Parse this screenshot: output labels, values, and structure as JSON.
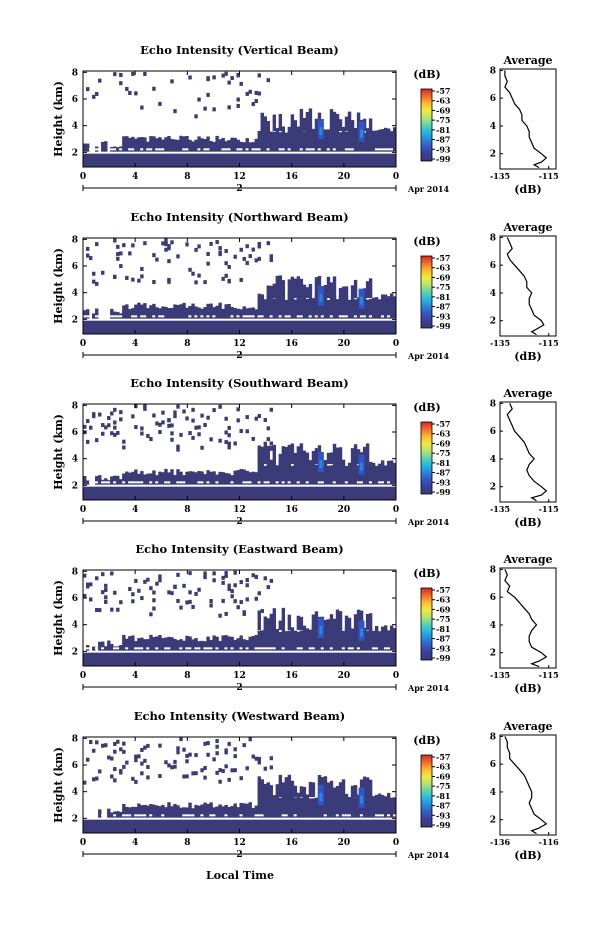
{
  "figure": {
    "bottom_label": "Local Time",
    "colorbar_unit": "(dB)",
    "colorbar_ticks": [
      "-57",
      "-63",
      "-69",
      "-75",
      "-81",
      "-87",
      "-93",
      "-99"
    ],
    "colorbar_colors": [
      "#d1272c",
      "#f36b2a",
      "#fdb930",
      "#f2ea3c",
      "#b8e36e",
      "#5fd3ac",
      "#23b7e3",
      "#2b86d8",
      "#3557c4",
      "#3b3f9a",
      "#3a3a78"
    ],
    "fill_color": "#3a3b78"
  },
  "chart_data": [
    {
      "type": "heatmap",
      "title": "Echo Intensity (Vertical Beam)",
      "ylabel": "Height (km)",
      "x_ticks": [
        "0",
        "4",
        "8",
        "12",
        "16",
        "20",
        "0"
      ],
      "y_ticks": [
        "2",
        "4",
        "6",
        "8"
      ],
      "xlim": [
        0,
        24
      ],
      "ylim": [
        0.9,
        8.1
      ],
      "date_marker": "2",
      "date_suffix": "Apr 2014",
      "profile": {
        "title": "Average",
        "xlabel": "(dB)",
        "x_ticks": [
          "-135",
          "-115"
        ],
        "xlim": [
          -135,
          -112
        ],
        "points": [
          [
            -133,
            8.0
          ],
          [
            -133,
            7.6
          ],
          [
            -132,
            7.2
          ],
          [
            -133,
            6.8
          ],
          [
            -131,
            6.4
          ],
          [
            -130,
            6.0
          ],
          [
            -129,
            5.6
          ],
          [
            -127,
            5.2
          ],
          [
            -126,
            4.8
          ],
          [
            -126,
            4.4
          ],
          [
            -124,
            4.0
          ],
          [
            -123,
            3.6
          ],
          [
            -123,
            3.2
          ],
          [
            -122,
            2.8
          ],
          [
            -121,
            2.4
          ],
          [
            -118,
            2.0
          ],
          [
            -116,
            1.7
          ],
          [
            -118,
            1.4
          ],
          [
            -121,
            1.2
          ],
          [
            -119,
            1.0
          ]
        ]
      }
    },
    {
      "type": "heatmap",
      "title": "Echo Intensity (Northward Beam)",
      "ylabel": "Height (km)",
      "x_ticks": [
        "0",
        "4",
        "8",
        "12",
        "16",
        "20",
        "0"
      ],
      "y_ticks": [
        "2",
        "4",
        "6",
        "8"
      ],
      "xlim": [
        0,
        24
      ],
      "ylim": [
        0.9,
        8.1
      ],
      "date_marker": "2",
      "date_suffix": "Apr 2014",
      "profile": {
        "title": "Average",
        "xlabel": "(dB)",
        "x_ticks": [
          "-135",
          "-115"
        ],
        "xlim": [
          -135,
          -112
        ],
        "points": [
          [
            -132,
            8.0
          ],
          [
            -131,
            7.6
          ],
          [
            -130,
            7.2
          ],
          [
            -132,
            6.8
          ],
          [
            -131,
            6.4
          ],
          [
            -129,
            6.0
          ],
          [
            -127,
            5.6
          ],
          [
            -125,
            5.2
          ],
          [
            -124,
            4.8
          ],
          [
            -124,
            4.4
          ],
          [
            -122,
            4.0
          ],
          [
            -123,
            3.6
          ],
          [
            -123,
            3.2
          ],
          [
            -122,
            2.8
          ],
          [
            -121,
            2.4
          ],
          [
            -118,
            2.0
          ],
          [
            -117,
            1.7
          ],
          [
            -120,
            1.4
          ],
          [
            -122,
            1.2
          ],
          [
            -120,
            1.0
          ]
        ]
      }
    },
    {
      "type": "heatmap",
      "title": "Echo Intensity (Southward Beam)",
      "ylabel": "Height (km)",
      "x_ticks": [
        "0",
        "4",
        "8",
        "12",
        "16",
        "20",
        "0"
      ],
      "y_ticks": [
        "2",
        "4",
        "6",
        "8"
      ],
      "xlim": [
        0,
        24
      ],
      "ylim": [
        0.9,
        8.1
      ],
      "date_marker": "2",
      "date_suffix": "Apr 2014",
      "profile": {
        "title": "Average",
        "xlabel": "(dB)",
        "x_ticks": [
          "-135",
          "-115"
        ],
        "xlim": [
          -135,
          -112
        ],
        "points": [
          [
            -131,
            8.0
          ],
          [
            -130,
            7.6
          ],
          [
            -132,
            7.2
          ],
          [
            -131,
            6.8
          ],
          [
            -130,
            6.4
          ],
          [
            -129,
            6.0
          ],
          [
            -127,
            5.6
          ],
          [
            -125,
            5.2
          ],
          [
            -124,
            4.8
          ],
          [
            -123,
            4.4
          ],
          [
            -121,
            4.0
          ],
          [
            -123,
            3.6
          ],
          [
            -124,
            3.2
          ],
          [
            -123,
            2.8
          ],
          [
            -121,
            2.4
          ],
          [
            -118,
            2.0
          ],
          [
            -116,
            1.7
          ],
          [
            -118,
            1.4
          ],
          [
            -122,
            1.2
          ],
          [
            -120,
            1.0
          ]
        ]
      }
    },
    {
      "type": "heatmap",
      "title": "Echo Intensity (Eastward Beam)",
      "ylabel": "Height (km)",
      "x_ticks": [
        "0",
        "4",
        "8",
        "12",
        "16",
        "20",
        "0"
      ],
      "y_ticks": [
        "2",
        "4",
        "6",
        "8"
      ],
      "xlim": [
        0,
        24
      ],
      "ylim": [
        0.9,
        8.1
      ],
      "date_marker": "2",
      "date_suffix": "Apr 2014",
      "profile": {
        "title": "Average",
        "xlabel": "(dB)",
        "x_ticks": [
          "-135",
          "-115"
        ],
        "xlim": [
          -135,
          -112
        ],
        "points": [
          [
            -133,
            8.0
          ],
          [
            -132,
            7.6
          ],
          [
            -133,
            7.2
          ],
          [
            -131,
            6.8
          ],
          [
            -132,
            6.4
          ],
          [
            -129,
            6.0
          ],
          [
            -127,
            5.6
          ],
          [
            -125,
            5.2
          ],
          [
            -123,
            4.8
          ],
          [
            -122,
            4.4
          ],
          [
            -120,
            4.0
          ],
          [
            -122,
            3.6
          ],
          [
            -123,
            3.2
          ],
          [
            -123,
            2.8
          ],
          [
            -122,
            2.4
          ],
          [
            -118,
            2.0
          ],
          [
            -116,
            1.7
          ],
          [
            -119,
            1.4
          ],
          [
            -122,
            1.2
          ],
          [
            -119,
            1.0
          ]
        ]
      }
    },
    {
      "type": "heatmap",
      "title": "Echo Intensity (Westward Beam)",
      "ylabel": "Height (km)",
      "x_ticks": [
        "0",
        "4",
        "8",
        "12",
        "16",
        "20",
        "0"
      ],
      "y_ticks": [
        "2",
        "4",
        "6",
        "8"
      ],
      "xlim": [
        0,
        24
      ],
      "ylim": [
        0.9,
        8.1
      ],
      "date_marker": "2",
      "date_suffix": "Apr 2014",
      "profile": {
        "title": "Average",
        "xlabel": "(dB)",
        "x_ticks": [
          "-136",
          "-116"
        ],
        "xlim": [
          -136,
          -113
        ],
        "points": [
          [
            -134,
            8.0
          ],
          [
            -133,
            7.6
          ],
          [
            -133,
            7.2
          ],
          [
            -132,
            6.8
          ],
          [
            -132,
            6.4
          ],
          [
            -130,
            6.0
          ],
          [
            -128,
            5.6
          ],
          [
            -126,
            5.2
          ],
          [
            -125,
            4.8
          ],
          [
            -124,
            4.4
          ],
          [
            -123,
            4.0
          ],
          [
            -123,
            3.6
          ],
          [
            -124,
            3.2
          ],
          [
            -123,
            2.8
          ],
          [
            -122,
            2.4
          ],
          [
            -119,
            2.0
          ],
          [
            -117,
            1.7
          ],
          [
            -120,
            1.4
          ],
          [
            -123,
            1.2
          ],
          [
            -121,
            1.0
          ]
        ]
      }
    }
  ]
}
